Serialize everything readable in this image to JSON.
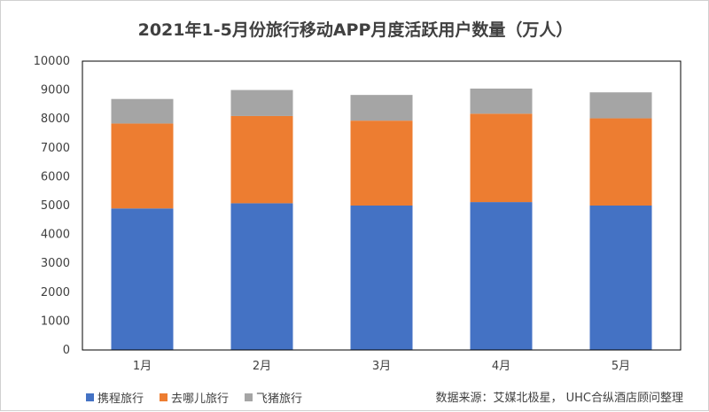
{
  "chart_data": {
    "type": "bar",
    "stacked": true,
    "title": "2021年1-5月份旅行移动APP月度活跃用户数量（万人）",
    "categories": [
      "1月",
      "2月",
      "3月",
      "4月",
      "5月"
    ],
    "series": [
      {
        "name": "携程旅行",
        "color": "#4472C4",
        "values": [
          4900,
          5080,
          5000,
          5120,
          5000
        ]
      },
      {
        "name": "去哪儿旅行",
        "color": "#ED7D31",
        "values": [
          2940,
          3020,
          2940,
          3060,
          3020
        ]
      },
      {
        "name": "飞猪旅行",
        "color": "#A5A5A5",
        "values": [
          850,
          900,
          890,
          870,
          900
        ]
      }
    ],
    "ylim": [
      0,
      10000
    ],
    "yticks": [
      0,
      1000,
      2000,
      3000,
      4000,
      5000,
      6000,
      7000,
      8000,
      9000,
      10000
    ],
    "grid": false,
    "legend_position": "bottom-left",
    "source": "数据来源：艾媒北极星， UHC合纵酒店顾问整理"
  }
}
